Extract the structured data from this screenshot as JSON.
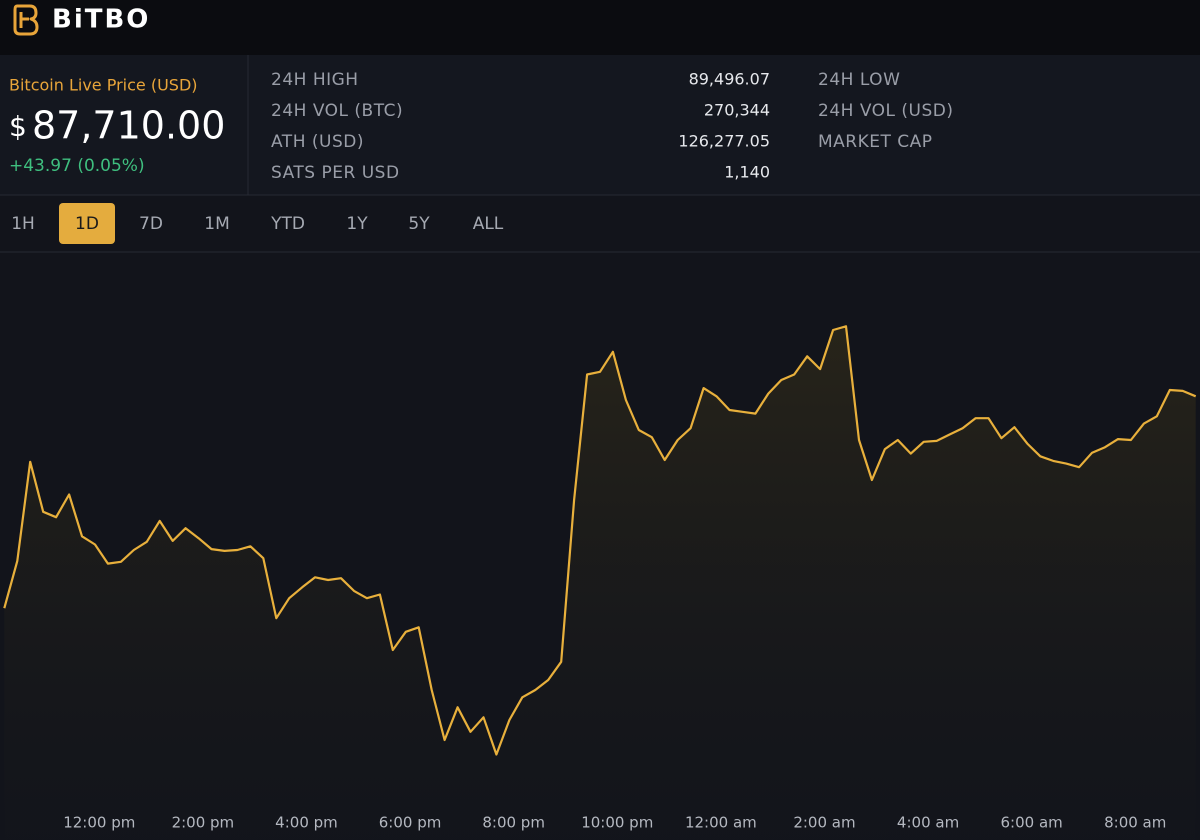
{
  "header": {
    "logo": "BiTBO"
  },
  "price": {
    "label": "Bitcoin Live Price (USD)",
    "currency": "$",
    "value": "87,710.00",
    "change": "+43.97 (0.05%)"
  },
  "stats": [
    {
      "label": "24H HIGH",
      "value": "89,496.07"
    },
    {
      "label": "24H VOL (BTC)",
      "value": "270,344"
    },
    {
      "label": "ATH (USD)",
      "value": "126,277.05"
    },
    {
      "label": "SATS PER USD",
      "value": "1,140"
    }
  ],
  "stats_right": [
    "24H LOW",
    "24H VOL (USD)",
    "MARKET CAP"
  ],
  "tabs": {
    "items": [
      "1H",
      "1D",
      "7D",
      "1M",
      "YTD",
      "1Y",
      "5Y",
      "ALL"
    ],
    "active": 1
  },
  "chart_data": {
    "type": "line",
    "color": "#e8b03c",
    "x": [
      610,
      625,
      640,
      655,
      670,
      685,
      700,
      715,
      730,
      745,
      760,
      775,
      790,
      805,
      820,
      835,
      850,
      865,
      880,
      895,
      910,
      925,
      940,
      955,
      970,
      985,
      1000,
      1015,
      1030,
      1045,
      1060,
      1075,
      1090,
      1105,
      1120,
      1135,
      1150,
      1165,
      1180,
      1195,
      1210,
      1225,
      1240,
      1255,
      1270,
      1285,
      1300,
      1315,
      1330,
      1345,
      1360,
      1375,
      1390,
      1405,
      1420,
      1435,
      1450,
      1465,
      1480,
      1495,
      1510,
      1525,
      1540,
      1555,
      1570,
      1585,
      1600,
      1615,
      1630,
      1645,
      1660,
      1675,
      1690,
      1705,
      1720,
      1735,
      1750,
      1765,
      1780,
      1795,
      1810,
      1825,
      1840,
      1855,
      1870,
      1885,
      1900,
      1915,
      1930,
      1945,
      1960,
      1975,
      1990
    ],
    "values": [
      86110,
      86630,
      87720,
      87170,
      87110,
      87360,
      86900,
      86810,
      86600,
      86620,
      86750,
      86840,
      87070,
      86850,
      86990,
      86880,
      86760,
      86740,
      86750,
      86790,
      86660,
      86000,
      86220,
      86340,
      86450,
      86420,
      86440,
      86300,
      86220,
      86260,
      85650,
      85850,
      85900,
      85210,
      84660,
      85020,
      84750,
      84910,
      84500,
      84880,
      85130,
      85210,
      85320,
      85520,
      87300,
      88680,
      88710,
      88930,
      88400,
      88070,
      87990,
      87740,
      87960,
      88090,
      88530,
      88440,
      88290,
      88270,
      88250,
      88470,
      88620,
      88680,
      88880,
      88740,
      89170,
      89210,
      87960,
      87520,
      87860,
      87960,
      87810,
      87940,
      87950,
      88020,
      88090,
      88200,
      88200,
      87980,
      88100,
      87920,
      87780,
      87730,
      87700,
      87660,
      87820,
      87880,
      87970,
      87960,
      88140,
      88220,
      88510,
      88500,
      88440
    ],
    "xlim": [
      605,
      1995
    ],
    "ylim": [
      84000,
      90000
    ],
    "xticks": [
      {
        "value": 720,
        "label": "12:00 pm"
      },
      {
        "value": 840,
        "label": "2:00 pm"
      },
      {
        "value": 960,
        "label": "4:00 pm"
      },
      {
        "value": 1080,
        "label": "6:00 pm"
      },
      {
        "value": 1200,
        "label": "8:00 pm"
      },
      {
        "value": 1320,
        "label": "10:00 pm"
      },
      {
        "value": 1440,
        "label": "12:00 am"
      },
      {
        "value": 1560,
        "label": "2:00 am"
      },
      {
        "value": 1680,
        "label": "4:00 am"
      },
      {
        "value": 1800,
        "label": "6:00 am"
      },
      {
        "value": 1920,
        "label": "8:00 am"
      }
    ],
    "grid": false
  }
}
